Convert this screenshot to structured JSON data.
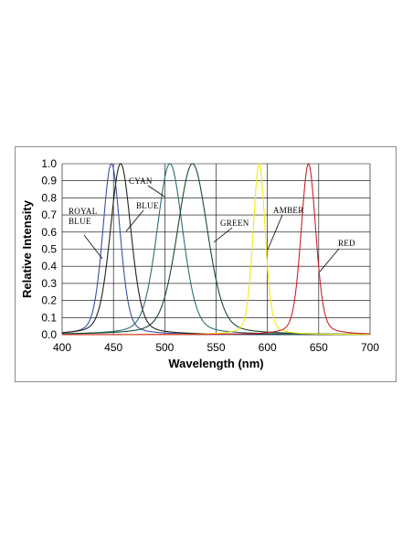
{
  "chart_data": {
    "type": "line",
    "xlabel": "Wavelength (nm)",
    "ylabel": "Relative Intensity",
    "xlim": [
      400,
      700
    ],
    "ylim": [
      0,
      1
    ],
    "x_ticks": [
      "400",
      "450",
      "500",
      "550",
      "600",
      "650",
      "700"
    ],
    "y_ticks": [
      "0.0",
      "0.1",
      "0.2",
      "0.3",
      "0.4",
      "0.5",
      "0.6",
      "0.7",
      "0.8",
      "0.9",
      "1.0"
    ],
    "grid": true,
    "series": [
      {
        "name": "ROYAL BLUE",
        "peak_nm": 448,
        "fwhm_nm": 20,
        "color": "#3a4fa8"
      },
      {
        "name": "BLUE",
        "peak_nm": 457,
        "fwhm_nm": 24,
        "color": "#222222"
      },
      {
        "name": "CYAN",
        "peak_nm": 505,
        "fwhm_nm": 30,
        "color": "#2b6f74"
      },
      {
        "name": "GREEN",
        "peak_nm": 527,
        "fwhm_nm": 35,
        "color": "#1d4a2a"
      },
      {
        "name": "AMBER",
        "peak_nm": 592,
        "fwhm_nm": 14,
        "color": "#f2ea14"
      },
      {
        "name": "RED",
        "peak_nm": 640,
        "fwhm_nm": 17,
        "color": "#c8232a"
      }
    ],
    "annotations": [
      {
        "lines": [
          "ROYAL",
          "BLUE"
        ],
        "points_to": "ROYAL BLUE"
      },
      {
        "lines": [
          "BLUE"
        ],
        "points_to": "BLUE"
      },
      {
        "lines": [
          "CYAN"
        ],
        "points_to": "CYAN"
      },
      {
        "lines": [
          "GREEN"
        ],
        "points_to": "GREEN"
      },
      {
        "lines": [
          "AMBER"
        ],
        "points_to": "AMBER"
      },
      {
        "lines": [
          "RED"
        ],
        "points_to": "RED"
      }
    ]
  }
}
